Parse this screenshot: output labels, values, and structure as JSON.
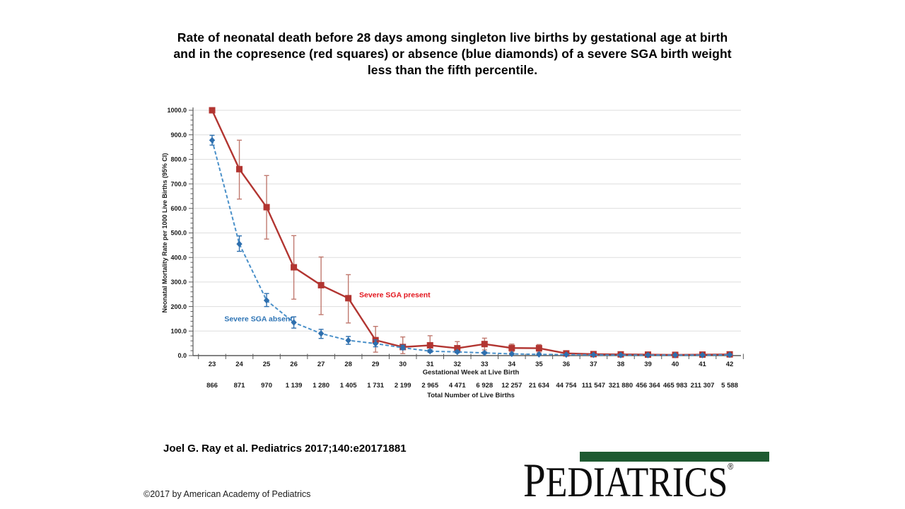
{
  "title": {
    "lines": [
      "Rate of neonatal death before 28 days among singleton live births by gestational age at birth",
      "and in the copresence (red squares) or absence (blue diamonds) of a severe SGA birth weight",
      "less than the fifth percentile."
    ]
  },
  "citation": {
    "text": "Joel G. Ray et al. Pediatrics 2017;140:e20171881"
  },
  "copyright": {
    "text": "©2017 by American Academy of Pediatrics"
  },
  "logo": {
    "wordmark": "PEDIATRICS",
    "registered": "®",
    "bar_color": "#1e5a31"
  },
  "chart_data": {
    "type": "line",
    "xlabel": "Gestational Week at Live Birth",
    "ylabel": "Neonatal Mortality Rate per 1000 Live Births (95% CI)",
    "x_weeks": [
      23,
      24,
      25,
      26,
      27,
      28,
      29,
      30,
      31,
      32,
      33,
      34,
      35,
      36,
      37,
      38,
      39,
      40,
      41,
      42
    ],
    "ylim": [
      0,
      1000
    ],
    "ytick_step": 100,
    "ytick_minor_step": 20,
    "ytick_decimal_format": "one_decimal",
    "grid": "horizontal",
    "grid_color": "#dedede",
    "axis_color": "#595959",
    "births_row": {
      "label": "Total Number of Live Births",
      "values": [
        "866",
        "871",
        "970",
        "1 139",
        "1 280",
        "1 405",
        "1 731",
        "2 199",
        "2 965",
        "4 471",
        "6 928",
        "12 257",
        "21 634",
        "44 754",
        "111 547",
        "321 880",
        "456 364",
        "465 983",
        "211 307",
        "5 588"
      ]
    },
    "series": [
      {
        "name": "Severe SGA present",
        "marker": "square",
        "line_style": "solid",
        "color": "#b23531",
        "line_color": "#b23531",
        "err_color": "#c0796f",
        "label_color": "#e3161e",
        "label_pos": {
          "week": 28.4,
          "value": 248
        },
        "values": [
          1000,
          760,
          605,
          360,
          287,
          234,
          63,
          35,
          42,
          30,
          47,
          31,
          30,
          9,
          6,
          5,
          4,
          3,
          4,
          5
        ],
        "ci_low": [
          1000,
          638,
          475,
          230,
          167,
          133,
          14,
          8,
          15,
          12,
          23,
          16,
          14,
          3,
          2,
          2,
          1,
          1,
          1,
          1
        ],
        "ci_high": [
          1000,
          878,
          734,
          489,
          402,
          330,
          119,
          76,
          81,
          57,
          71,
          47,
          45,
          16,
          11,
          9,
          7,
          6,
          8,
          11
        ]
      },
      {
        "name": "Severe SGA absent",
        "marker": "diamond",
        "line_style": "dashed",
        "color": "#2e6fae",
        "line_color": "#4a90c9",
        "err_color": "#2e6fae",
        "label_color": "#2e74b5",
        "label_pos": {
          "week": 23.45,
          "value": 150
        },
        "values": [
          878,
          455,
          225,
          135,
          90,
          62,
          49,
          32,
          18,
          15,
          11,
          7,
          5,
          4,
          3,
          2,
          2,
          2,
          2,
          3
        ],
        "ci_low": [
          858,
          425,
          200,
          112,
          70,
          46,
          36,
          24,
          13,
          11,
          8,
          5,
          4,
          3,
          2,
          2,
          2,
          2,
          2,
          2
        ],
        "ci_high": [
          898,
          488,
          253,
          158,
          107,
          78,
          64,
          42,
          24,
          20,
          15,
          10,
          8,
          6,
          4,
          3,
          3,
          3,
          4,
          6
        ]
      }
    ]
  }
}
